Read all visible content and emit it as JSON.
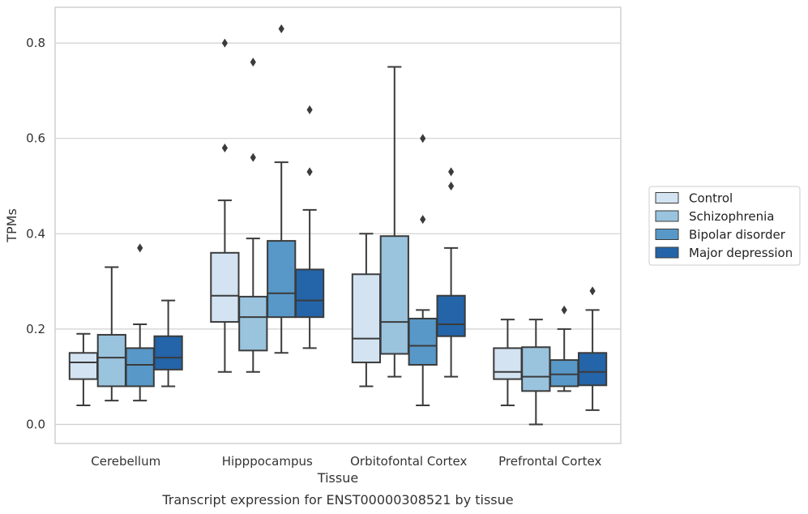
{
  "chart_data": {
    "type": "box",
    "title": "",
    "caption": "Transcript expression for ENST00000308521 by tissue",
    "xlabel": "Tissue",
    "ylabel": "TPMs",
    "ylim": [
      -0.04,
      0.875
    ],
    "yticks": [
      0.0,
      0.2,
      0.4,
      0.6,
      0.8
    ],
    "ytick_labels": [
      "0.0",
      "0.2",
      "0.4",
      "0.6",
      "0.8"
    ],
    "grid": "horizontal",
    "legend_position": "right",
    "categories": [
      "Cerebellum",
      "Hipppocampus",
      "Orbitofontal Cortex",
      "Prefrontal Cortex"
    ],
    "series": [
      {
        "name": "Control",
        "color": "#d3e3f2",
        "boxes": [
          {
            "whislo": 0.04,
            "q1": 0.095,
            "med": 0.13,
            "q3": 0.15,
            "whishi": 0.19,
            "fliers": []
          },
          {
            "whislo": 0.11,
            "q1": 0.215,
            "med": 0.27,
            "q3": 0.36,
            "whishi": 0.47,
            "fliers": [
              0.58,
              0.8
            ]
          },
          {
            "whislo": 0.08,
            "q1": 0.13,
            "med": 0.18,
            "q3": 0.315,
            "whishi": 0.4,
            "fliers": []
          },
          {
            "whislo": 0.04,
            "q1": 0.095,
            "med": 0.11,
            "q3": 0.16,
            "whishi": 0.22,
            "fliers": []
          }
        ]
      },
      {
        "name": "Schizophrenia",
        "color": "#9ac3de",
        "boxes": [
          {
            "whislo": 0.05,
            "q1": 0.08,
            "med": 0.14,
            "q3": 0.188,
            "whishi": 0.33,
            "fliers": []
          },
          {
            "whislo": 0.11,
            "q1": 0.155,
            "med": 0.225,
            "q3": 0.268,
            "whishi": 0.39,
            "fliers": [
              0.56,
              0.76
            ]
          },
          {
            "whislo": 0.1,
            "q1": 0.148,
            "med": 0.215,
            "q3": 0.395,
            "whishi": 0.75,
            "fliers": []
          },
          {
            "whislo": 0.0,
            "q1": 0.07,
            "med": 0.1,
            "q3": 0.162,
            "whishi": 0.22,
            "fliers": []
          }
        ]
      },
      {
        "name": "Bipolar disorder",
        "color": "#5898c8",
        "boxes": [
          {
            "whislo": 0.05,
            "q1": 0.08,
            "med": 0.125,
            "q3": 0.16,
            "whishi": 0.21,
            "fliers": [
              0.37
            ]
          },
          {
            "whislo": 0.15,
            "q1": 0.225,
            "med": 0.275,
            "q3": 0.385,
            "whishi": 0.55,
            "fliers": [
              0.83
            ]
          },
          {
            "whislo": 0.04,
            "q1": 0.125,
            "med": 0.165,
            "q3": 0.222,
            "whishi": 0.24,
            "fliers": [
              0.43,
              0.6
            ]
          },
          {
            "whislo": 0.07,
            "q1": 0.08,
            "med": 0.105,
            "q3": 0.135,
            "whishi": 0.2,
            "fliers": [
              0.24
            ]
          }
        ]
      },
      {
        "name": "Major depression",
        "color": "#2464a8",
        "boxes": [
          {
            "whislo": 0.08,
            "q1": 0.115,
            "med": 0.14,
            "q3": 0.185,
            "whishi": 0.26,
            "fliers": []
          },
          {
            "whislo": 0.16,
            "q1": 0.225,
            "med": 0.26,
            "q3": 0.325,
            "whishi": 0.45,
            "fliers": [
              0.53,
              0.66
            ]
          },
          {
            "whislo": 0.1,
            "q1": 0.185,
            "med": 0.21,
            "q3": 0.27,
            "whishi": 0.37,
            "fliers": [
              0.5,
              0.53
            ]
          },
          {
            "whislo": 0.03,
            "q1": 0.082,
            "med": 0.11,
            "q3": 0.15,
            "whishi": 0.24,
            "fliers": [
              0.28
            ]
          }
        ]
      }
    ]
  }
}
